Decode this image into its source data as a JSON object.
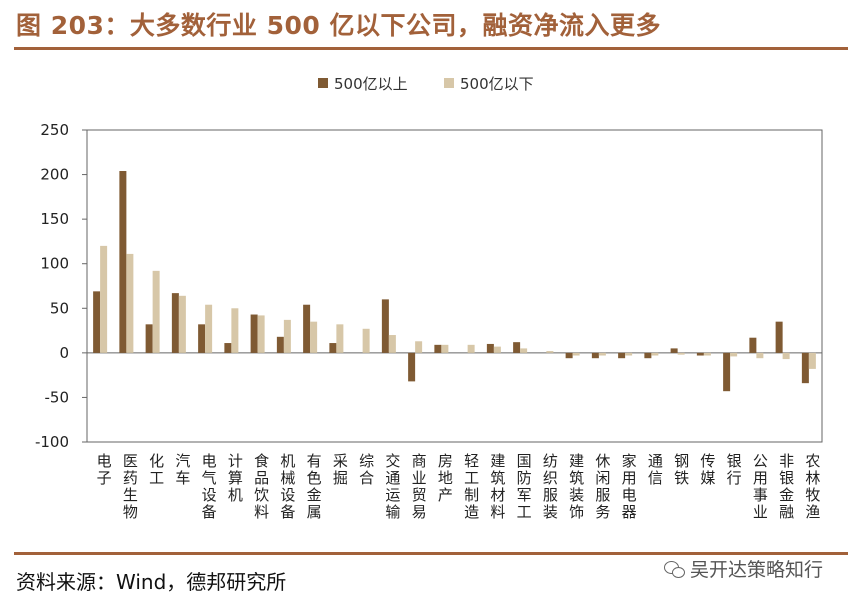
{
  "title": "图 203：大多数行业 500 亿以下公司，融资净流入更多",
  "source": "资料来源：Wind，德邦研究所",
  "watermark": "吴开达策略知行",
  "colors": {
    "accent": "#a2613a",
    "series_above": "#7f5a33",
    "series_below": "#d7c7a8"
  },
  "chart_data": {
    "type": "bar",
    "ylim": [
      -100,
      250
    ],
    "yticks": [
      250,
      200,
      150,
      100,
      50,
      0,
      -50,
      -100
    ],
    "legend_position": "top-center",
    "grid": false,
    "categories": [
      "电子",
      "医药生物",
      "化工",
      "汽车",
      "电气设备",
      "计算机",
      "食品饮料",
      "机械设备",
      "有色金属",
      "采掘",
      "综合",
      "交通运输",
      "商业贸易",
      "房地产",
      "轻工制造",
      "建筑材料",
      "国防军工",
      "纺织服装",
      "建筑装饰",
      "休闲服务",
      "家用电器",
      "通信",
      "钢铁",
      "传媒",
      "银行",
      "公用事业",
      "非银金融",
      "农林牧渔"
    ],
    "series": [
      {
        "name": "500亿以上",
        "values": [
          69,
          204,
          32,
          67,
          32,
          11,
          43,
          18,
          54,
          11,
          0,
          60,
          -32,
          9,
          0,
          10,
          12,
          0,
          -6,
          -6,
          -6,
          -6,
          5,
          -3,
          -43,
          17,
          35,
          -34
        ]
      },
      {
        "name": "500亿以下",
        "values": [
          120,
          111,
          92,
          64,
          54,
          50,
          42,
          37,
          35,
          32,
          27,
          20,
          13,
          9,
          9,
          7,
          5,
          2,
          -3,
          -3,
          -3,
          -3,
          -2,
          -3,
          -4,
          -6,
          -7,
          -18
        ]
      }
    ]
  }
}
